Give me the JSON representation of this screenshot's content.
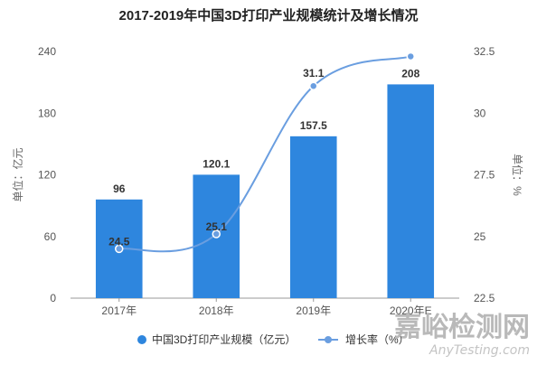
{
  "chart_data": {
    "type": "bar",
    "title": "2017-2019年中国3D打印产业规模统计及增长情况",
    "categories": [
      "2017年",
      "2018年",
      "2019年",
      "2020年E"
    ],
    "series": [
      {
        "name": "中国3D打印产业规模（亿元）",
        "type": "bar",
        "axis": "left",
        "values": [
          96,
          120.1,
          157.5,
          208
        ],
        "labels": [
          "96",
          "120.1",
          "157.5",
          "208"
        ],
        "color": "#2e86de"
      },
      {
        "name": "增长率（%）",
        "type": "line",
        "axis": "right",
        "values": [
          24.5,
          25.1,
          31.1,
          32.3
        ],
        "labels": [
          "24.5",
          "25.1",
          "31.1",
          ""
        ],
        "color": "#6a9ee0"
      }
    ],
    "y_left": {
      "label": "单位：亿元",
      "ticks": [
        "0",
        "60",
        "120",
        "180",
        "240"
      ],
      "range": [
        0,
        240
      ]
    },
    "y_right": {
      "label": "单位：%",
      "ticks": [
        "22.5",
        "25",
        "27.5",
        "30",
        "32.5"
      ],
      "range": [
        22.5,
        32.5
      ]
    },
    "legend_position": "bottom",
    "grid": false
  },
  "watermark": {
    "cn": "嘉峪检测网",
    "en": "AnyTesting.com"
  },
  "colors": {
    "bar": "#2e86de",
    "line": "#6a9ee0",
    "axis": "#999999"
  }
}
